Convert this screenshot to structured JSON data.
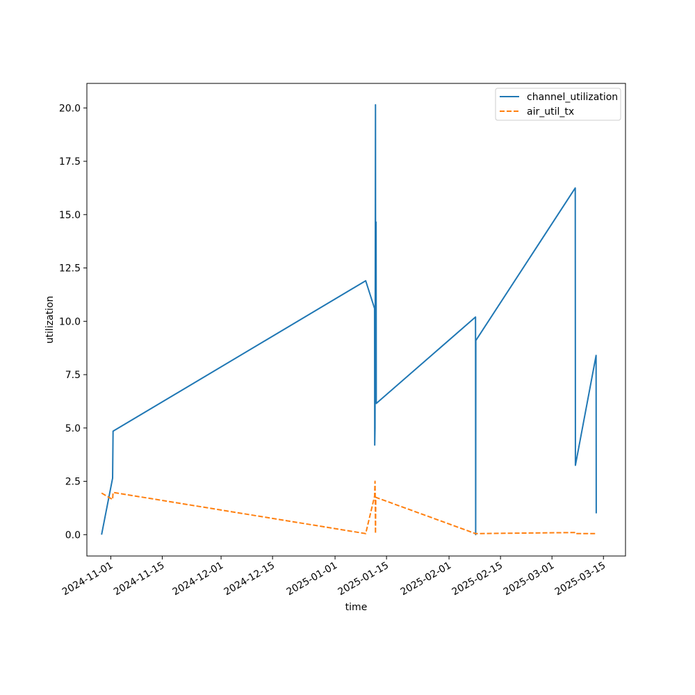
{
  "chart_data": {
    "type": "line",
    "title": "",
    "xlabel": "time",
    "ylabel": "utilization",
    "xlim": [
      "2024-10-25T12:00",
      "2025-03-21T00:00"
    ],
    "ylim": [
      -1.0,
      21.15
    ],
    "x_ticks": [
      "2024-11-01",
      "2024-11-15",
      "2024-12-01",
      "2024-12-15",
      "2025-01-01",
      "2025-01-15",
      "2025-02-01",
      "2025-02-15",
      "2025-03-01",
      "2025-03-15"
    ],
    "y_ticks": [
      0.0,
      2.5,
      5.0,
      7.5,
      10.0,
      12.5,
      15.0,
      17.5,
      20.0
    ],
    "y_tick_labels": [
      "0.0",
      "2.5",
      "5.0",
      "7.5",
      "10.0",
      "12.5",
      "15.0",
      "17.5",
      "20.0"
    ],
    "grid": false,
    "legend_position": "top-right",
    "series": [
      {
        "name": "channel_utilization",
        "color": "#1f77b4",
        "style": "solid",
        "points": [
          [
            "2024-10-29T12:00",
            0.0
          ],
          [
            "2024-11-01T12:00",
            2.65
          ],
          [
            "2024-11-01T15:00",
            4.85
          ],
          [
            "2025-01-09T08:00",
            11.9
          ],
          [
            "2025-01-11T18:00",
            10.6
          ],
          [
            "2025-01-11T19:00",
            4.2
          ],
          [
            "2025-01-11T21:00",
            5.0
          ],
          [
            "2025-01-11T22:00",
            9.5
          ],
          [
            "2025-01-12T00:00",
            20.15
          ],
          [
            "2025-01-12T01:00",
            7.0
          ],
          [
            "2025-01-12T04:00",
            14.65
          ],
          [
            "2025-01-12T05:00",
            6.15
          ],
          [
            "2025-02-08T05:00",
            10.2
          ],
          [
            "2025-02-08T06:00",
            0.0
          ],
          [
            "2025-02-08T07:00",
            9.1
          ],
          [
            "2025-03-07T08:00",
            16.25
          ],
          [
            "2025-03-07T09:00",
            3.25
          ],
          [
            "2025-03-13T00:00",
            8.4
          ],
          [
            "2025-03-13T01:00",
            1.0
          ]
        ]
      },
      {
        "name": "air_util_tx",
        "color": "#ff7f0e",
        "style": "dashed",
        "points": [
          [
            "2024-10-29T12:00",
            1.95
          ],
          [
            "2024-11-01T12:00",
            1.65
          ],
          [
            "2024-11-01T15:00",
            1.98
          ],
          [
            "2025-01-09T08:00",
            0.05
          ],
          [
            "2025-01-11T18:00",
            1.8
          ],
          [
            "2025-01-11T21:00",
            2.5
          ],
          [
            "2025-01-11T23:00",
            1.4
          ],
          [
            "2025-01-12T00:00",
            0.05
          ],
          [
            "2025-01-12T02:00",
            1.75
          ],
          [
            "2025-02-08T05:00",
            0.05
          ],
          [
            "2025-03-07T08:00",
            0.1
          ],
          [
            "2025-03-07T09:00",
            0.05
          ],
          [
            "2025-03-13T01:00",
            0.05
          ]
        ]
      }
    ]
  }
}
